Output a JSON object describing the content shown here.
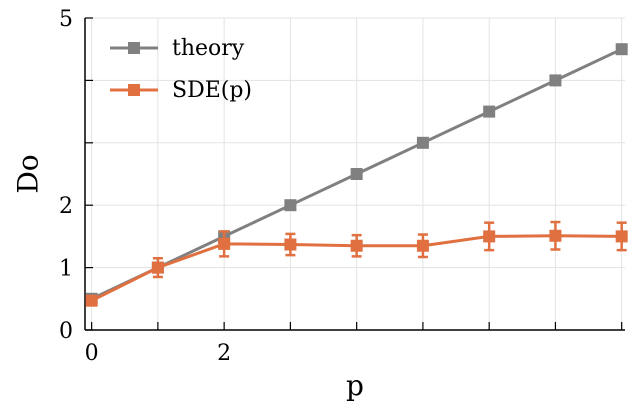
{
  "chart_data": {
    "type": "line",
    "xlabel": "p",
    "ylabel": "Do",
    "xlim": [
      -0.1,
      8.05
    ],
    "ylim": [
      0,
      5
    ],
    "x_ticks": [
      0,
      1,
      2,
      3,
      4,
      5,
      6,
      7,
      8
    ],
    "x_tick_labels": [
      "0",
      "",
      "2",
      "",
      "",
      "",
      "",
      "",
      ""
    ],
    "y_ticks": [
      0,
      1,
      2,
      3,
      4,
      5
    ],
    "y_tick_labels": [
      "0",
      "1",
      "2",
      "",
      "",
      "5"
    ],
    "grid": true,
    "legend_position": "top-left",
    "series": [
      {
        "name": "theory",
        "color": "#808080",
        "marker": "square",
        "x": [
          0,
          1,
          2,
          3,
          4,
          5,
          6,
          7,
          8
        ],
        "y": [
          0.5,
          1.0,
          1.5,
          2.0,
          2.5,
          3.0,
          3.5,
          4.0,
          4.5
        ]
      },
      {
        "name": "SDE(p)",
        "color": "#e07040",
        "marker": "square",
        "x": [
          0,
          1,
          2,
          3,
          4,
          5,
          6,
          7,
          8
        ],
        "y": [
          0.47,
          1.0,
          1.38,
          1.37,
          1.35,
          1.35,
          1.5,
          1.51,
          1.5
        ],
        "err": [
          0.05,
          0.15,
          0.2,
          0.17,
          0.17,
          0.18,
          0.22,
          0.22,
          0.22
        ]
      }
    ]
  }
}
